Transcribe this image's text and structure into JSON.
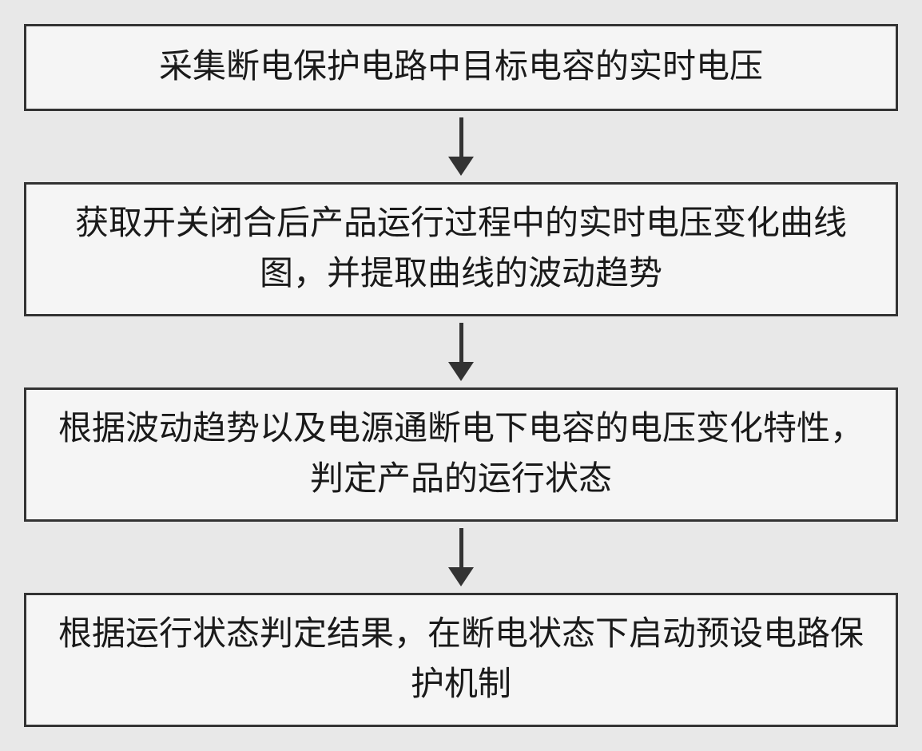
{
  "flowchart": {
    "type": "flowchart",
    "direction": "vertical",
    "background_color": "#e8e8e8",
    "box_background": "#f5f5f5",
    "box_border_color": "#333333",
    "box_border_width": 3,
    "text_color": "#1a1a1a",
    "font_size": 42,
    "font_family": "SimSun",
    "arrow_color": "#333333",
    "arrow_line_width": 5,
    "arrow_line_height": 50,
    "nodes": [
      {
        "id": "step1",
        "text": "采集断电保护电路中目标电容的实时电压",
        "lines": 1
      },
      {
        "id": "step2",
        "text": "获取开关闭合后产品运行过程中的实时电压变化曲线图，并提取曲线的波动趋势",
        "lines": 2
      },
      {
        "id": "step3",
        "text": "根据波动趋势以及电源通断电下电容的电压变化特性，判定产品的运行状态",
        "lines": 2
      },
      {
        "id": "step4",
        "text": "根据运行状态判定结果，在断电状态下启动预设电路保护机制",
        "lines": 2
      }
    ],
    "edges": [
      {
        "from": "step1",
        "to": "step2"
      },
      {
        "from": "step2",
        "to": "step3"
      },
      {
        "from": "step3",
        "to": "step4"
      }
    ]
  }
}
